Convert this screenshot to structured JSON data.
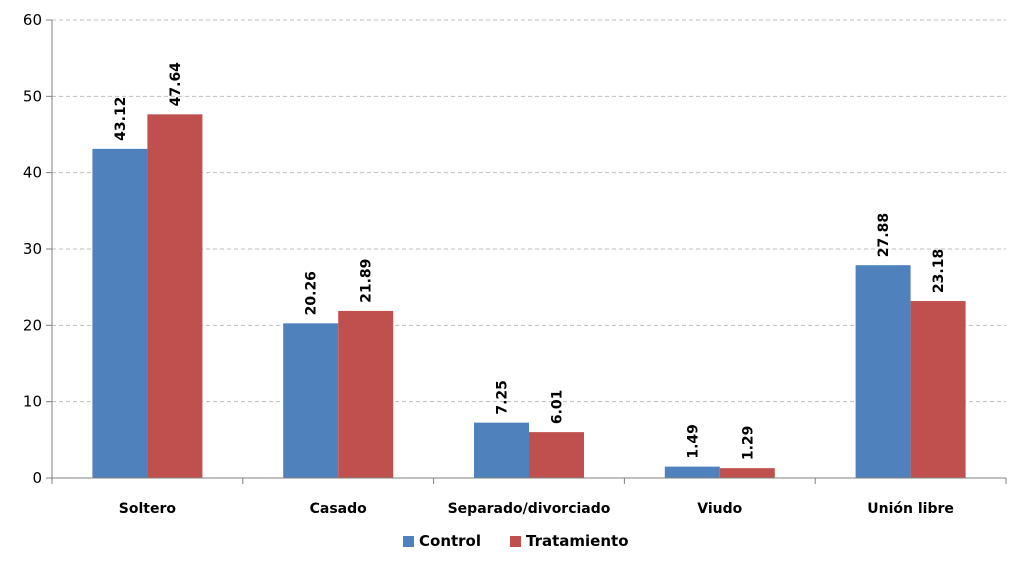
{
  "chart_data": {
    "type": "bar",
    "categories": [
      "Soltero",
      "Casado",
      "Separado/divorciado",
      "Viudo",
      "Unión libre"
    ],
    "series": [
      {
        "name": "Control",
        "values": [
          43.12,
          20.26,
          7.25,
          1.49,
          27.88
        ],
        "color": "#4f81bd"
      },
      {
        "name": "Tratamiento",
        "values": [
          47.64,
          21.89,
          6.01,
          1.29,
          23.18
        ],
        "color": "#c0504d"
      }
    ],
    "value_labels": [
      [
        "43.12",
        "20.26",
        "7.25",
        "1.49",
        "27.88"
      ],
      [
        "47.64",
        "21.89",
        "6.01",
        "1.29",
        "23.18"
      ]
    ],
    "ylim": [
      0,
      60
    ],
    "yticks": [
      0,
      10,
      20,
      30,
      40,
      50,
      60
    ],
    "ytick_labels": [
      "0",
      "10",
      "20",
      "30",
      "40",
      "50",
      "60"
    ],
    "grid": true,
    "legend_position": "bottom",
    "title": "",
    "xlabel": "",
    "ylabel": ""
  }
}
